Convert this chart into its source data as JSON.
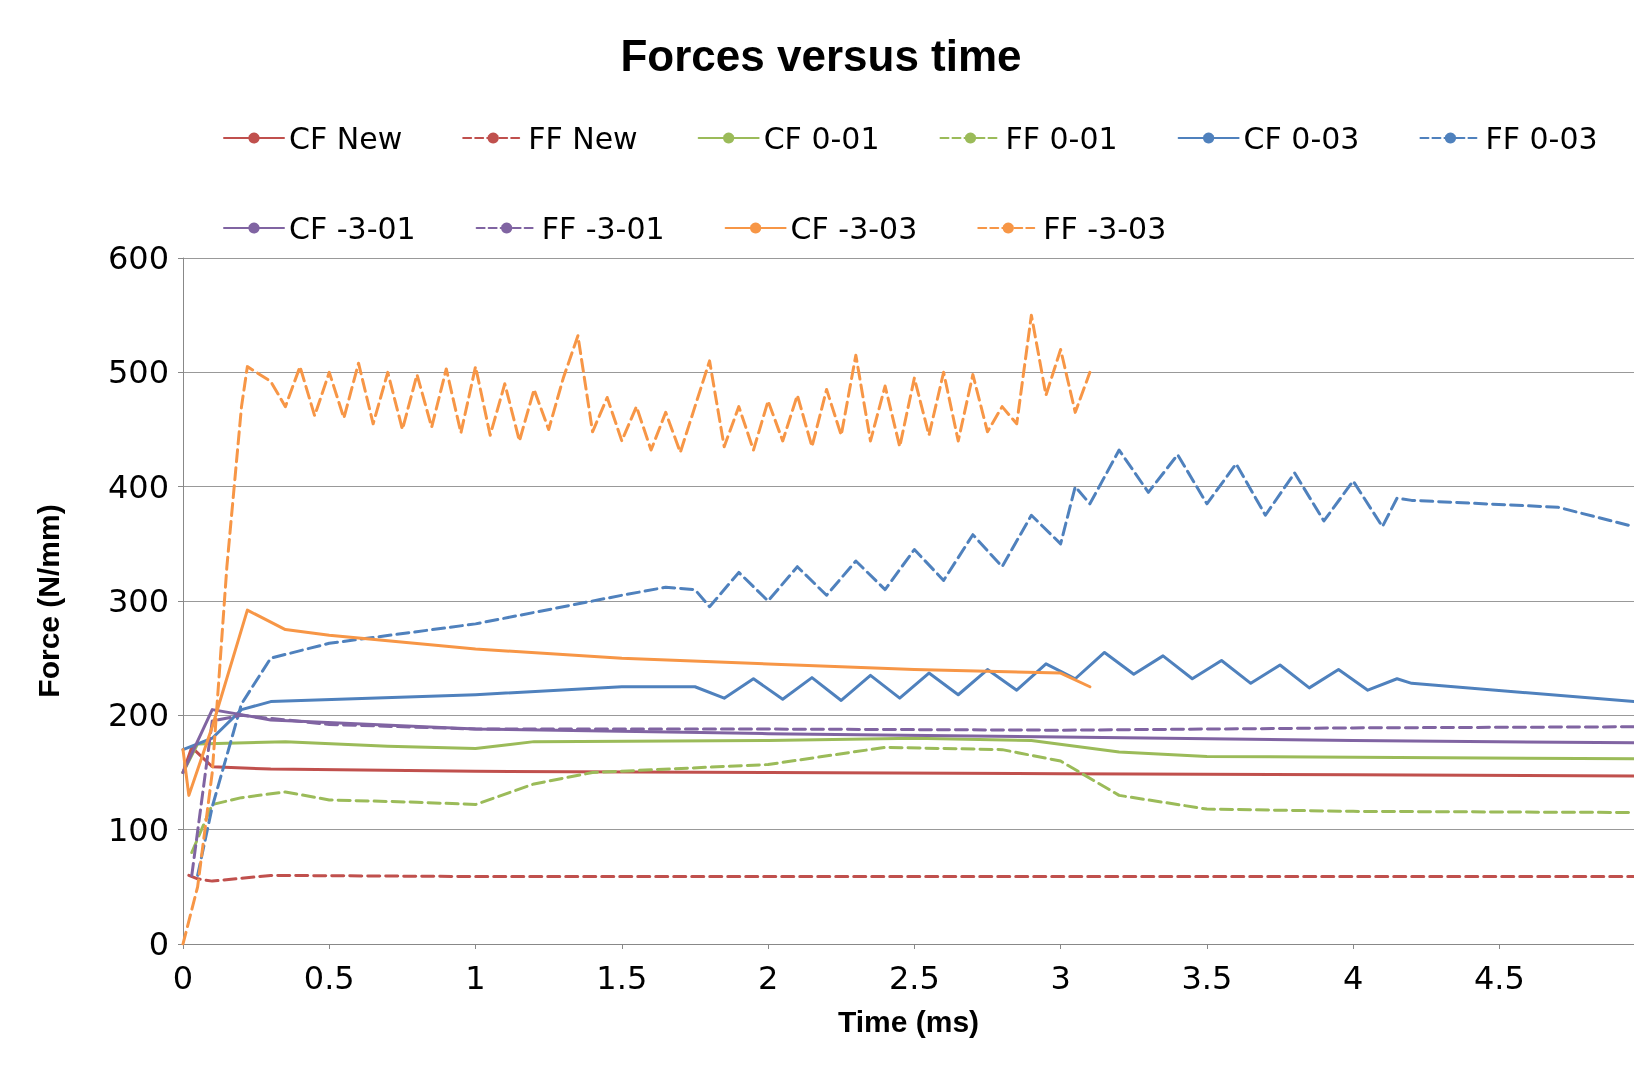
{
  "chart_data": {
    "type": "line",
    "title": "Forces versus time",
    "xlabel": "Time (ms)",
    "ylabel": "Force (N/mm)",
    "xlim": [
      0,
      4.96
    ],
    "xticks": [
      0,
      0.5,
      1,
      1.5,
      2,
      2.5,
      3,
      3.5,
      4,
      4.5
    ],
    "ylim": [
      0,
      600
    ],
    "yticks": [
      0,
      100,
      200,
      300,
      400,
      500,
      600
    ],
    "grid": "y",
    "legend": "top",
    "marker": "none",
    "series": [
      {
        "name": "CF New",
        "color": "#c0504d",
        "line_style": "solid",
        "x": [
          0,
          0.03,
          0.1,
          0.3,
          1,
          2,
          3,
          4,
          4.96
        ],
        "values": [
          150,
          172,
          155,
          153,
          151,
          150,
          149,
          148,
          147
        ]
      },
      {
        "name": "FF New",
        "color": "#c0504d",
        "line_style": "dashed",
        "x": [
          0.02,
          0.05,
          0.1,
          0.3,
          1,
          2,
          3,
          4,
          4.96
        ],
        "values": [
          60,
          57,
          55,
          60,
          59,
          59,
          59,
          59,
          59
        ]
      },
      {
        "name": "CF 0-01",
        "color": "#9bbb59",
        "line_style": "solid",
        "x": [
          0,
          0.05,
          0.35,
          0.7,
          1,
          1.2,
          2,
          2.5,
          2.9,
          3.2,
          3.5,
          4.96
        ],
        "values": [
          150,
          175,
          177,
          173,
          171,
          177,
          178,
          180,
          178,
          168,
          164,
          162
        ]
      },
      {
        "name": "FF 0-01",
        "color": "#9bbb59",
        "line_style": "dashed",
        "x": [
          0.03,
          0.1,
          0.2,
          0.35,
          0.5,
          0.8,
          1,
          1.2,
          1.4,
          2,
          2.4,
          2.8,
          3,
          3.2,
          3.5,
          4,
          4.96
        ],
        "values": [
          80,
          122,
          128,
          133,
          126,
          124,
          122,
          140,
          150,
          157,
          172,
          170,
          160,
          130,
          118,
          116,
          115
        ]
      },
      {
        "name": "CF 0-03",
        "color": "#4f81bd",
        "line_style": "solid",
        "x": [
          0,
          0.1,
          0.2,
          0.3,
          1,
          1.5,
          1.75,
          1.85,
          1.95,
          2.05,
          2.15,
          2.25,
          2.35,
          2.45,
          2.55,
          2.65,
          2.75,
          2.85,
          2.95,
          3.05,
          3.15,
          3.25,
          3.35,
          3.45,
          3.55,
          3.65,
          3.75,
          3.85,
          3.95,
          4.05,
          4.15,
          4.2,
          4.96
        ],
        "values": [
          170,
          180,
          205,
          212,
          218,
          225,
          225,
          215,
          232,
          214,
          233,
          213,
          235,
          215,
          237,
          218,
          240,
          222,
          245,
          232,
          255,
          236,
          252,
          232,
          248,
          228,
          244,
          224,
          240,
          222,
          232,
          228,
          212
        ]
      },
      {
        "name": "FF 0-03",
        "color": "#4f81bd",
        "line_style": "dashed",
        "x": [
          0.05,
          0.1,
          0.2,
          0.3,
          0.5,
          1,
          1.5,
          1.65,
          1.75,
          1.8,
          1.9,
          2,
          2.1,
          2.2,
          2.3,
          2.4,
          2.5,
          2.6,
          2.7,
          2.8,
          2.9,
          3,
          3.05,
          3.1,
          3.2,
          3.3,
          3.4,
          3.5,
          3.6,
          3.7,
          3.8,
          3.9,
          4,
          4.1,
          4.15,
          4.2,
          4.7,
          4.96
        ],
        "values": [
          60,
          120,
          210,
          250,
          263,
          280,
          305,
          312,
          310,
          295,
          325,
          300,
          330,
          305,
          335,
          310,
          345,
          318,
          358,
          330,
          375,
          350,
          400,
          385,
          432,
          395,
          428,
          385,
          420,
          375,
          412,
          370,
          405,
          365,
          390,
          388,
          382,
          365
        ]
      },
      {
        "name": "CF -3-01",
        "color": "#8064a2",
        "line_style": "solid",
        "x": [
          0,
          0.1,
          0.3,
          1,
          2,
          3,
          4,
          4.96
        ],
        "values": [
          150,
          205,
          196,
          188,
          184,
          181,
          178,
          176
        ]
      },
      {
        "name": "FF -3-01",
        "color": "#8064a2",
        "line_style": "dashed",
        "x": [
          0.03,
          0.1,
          0.2,
          0.5,
          1,
          2,
          3,
          4,
          4.96
        ],
        "values": [
          60,
          195,
          200,
          192,
          188,
          188,
          187,
          189,
          190
        ]
      },
      {
        "name": "CF -3-03",
        "color": "#f79646",
        "line_style": "solid",
        "x": [
          0,
          0.02,
          0.1,
          0.22,
          0.35,
          0.5,
          1,
          1.5,
          2,
          2.5,
          3,
          3.1
        ],
        "values": [
          170,
          130,
          190,
          292,
          275,
          270,
          258,
          250,
          245,
          240,
          237,
          225
        ]
      },
      {
        "name": "FF -3-03",
        "color": "#f79646",
        "line_style": "dashed",
        "x": [
          0,
          0.05,
          0.1,
          0.15,
          0.2,
          0.22,
          0.3,
          0.35,
          0.4,
          0.45,
          0.5,
          0.55,
          0.6,
          0.65,
          0.7,
          0.75,
          0.8,
          0.85,
          0.9,
          0.95,
          1,
          1.05,
          1.1,
          1.15,
          1.2,
          1.25,
          1.3,
          1.35,
          1.4,
          1.45,
          1.5,
          1.55,
          1.6,
          1.65,
          1.7,
          1.75,
          1.8,
          1.85,
          1.9,
          1.95,
          2,
          2.05,
          2.1,
          2.15,
          2.2,
          2.25,
          2.3,
          2.35,
          2.4,
          2.45,
          2.5,
          2.55,
          2.6,
          2.65,
          2.7,
          2.75,
          2.8,
          2.85,
          2.9,
          2.95,
          3,
          3.05,
          3.1
        ],
        "values": [
          0,
          50,
          150,
          330,
          470,
          505,
          492,
          470,
          505,
          462,
          500,
          460,
          508,
          455,
          500,
          450,
          498,
          452,
          503,
          447,
          505,
          445,
          490,
          440,
          485,
          450,
          495,
          532,
          448,
          478,
          440,
          470,
          432,
          465,
          430,
          470,
          510,
          435,
          470,
          432,
          475,
          440,
          480,
          435,
          485,
          445,
          515,
          440,
          488,
          435,
          495,
          445,
          500,
          440,
          498,
          448,
          470,
          455,
          550,
          480,
          520,
          465,
          500
        ]
      }
    ]
  }
}
